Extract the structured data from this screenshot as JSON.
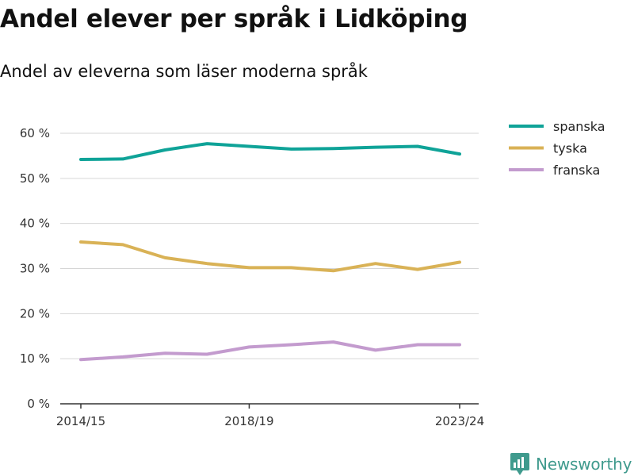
{
  "title": "Andel elever per språk i Lidköping",
  "subtitle": "Andel av eleverna som läser moderna språk",
  "brand": {
    "name": "Newsworthy",
    "icon": "newsworthy-logo-icon",
    "color": "#3f9a8d"
  },
  "chart_data": {
    "type": "line",
    "x": [
      "2014/15",
      "2015/16",
      "2016/17",
      "2017/18",
      "2018/19",
      "2019/20",
      "2020/21",
      "2021/22",
      "2022/23",
      "2023/24"
    ],
    "x_tick_labels": [
      "2014/15",
      "2018/19",
      "2023/24"
    ],
    "y_ticks": [
      0,
      10,
      20,
      30,
      40,
      50,
      60
    ],
    "y_tick_suffix": " %",
    "ylim": [
      0,
      60
    ],
    "grid": true,
    "legend_position": "top-right",
    "series": [
      {
        "name": "spanska",
        "color": "#0fa398",
        "values": [
          54.2,
          54.3,
          56.3,
          57.7,
          57.1,
          56.5,
          56.6,
          56.9,
          57.1,
          55.4
        ]
      },
      {
        "name": "tyska",
        "color": "#d9b256",
        "values": [
          35.9,
          35.3,
          32.4,
          31.1,
          30.2,
          30.2,
          29.5,
          31.1,
          29.8,
          31.4
        ]
      },
      {
        "name": "franska",
        "color": "#c39bce",
        "values": [
          9.8,
          10.4,
          11.2,
          11.0,
          12.6,
          13.1,
          13.7,
          11.9,
          13.1,
          13.1
        ]
      }
    ]
  }
}
